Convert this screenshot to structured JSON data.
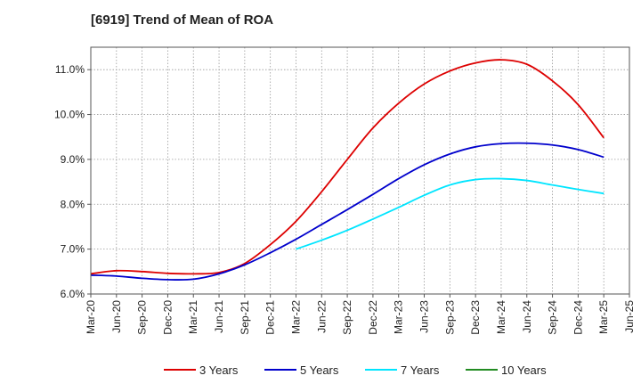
{
  "chart_data": {
    "type": "line",
    "title": "[6919]  Trend of Mean of ROA",
    "xlabel": "",
    "ylabel": "",
    "ylim": [
      6.0,
      11.5
    ],
    "y_ticks": [
      6.0,
      7.0,
      8.0,
      9.0,
      10.0,
      11.0
    ],
    "y_tick_labels": [
      "6.0%",
      "7.0%",
      "8.0%",
      "9.0%",
      "10.0%",
      "11.0%"
    ],
    "x": [
      "Mar-20",
      "Jun-20",
      "Sep-20",
      "Dec-20",
      "Mar-21",
      "Jun-21",
      "Sep-21",
      "Dec-21",
      "Mar-22",
      "Jun-22",
      "Sep-22",
      "Dec-22",
      "Mar-23",
      "Jun-23",
      "Sep-23",
      "Dec-23",
      "Mar-24",
      "Jun-24",
      "Sep-24",
      "Dec-24",
      "Mar-25",
      "Jun-25"
    ],
    "grid": true,
    "legend_position": "bottom",
    "series": [
      {
        "name": "3 Years",
        "color": "#dd0000",
        "values": [
          6.45,
          6.52,
          6.5,
          6.46,
          6.45,
          6.48,
          6.68,
          7.1,
          7.62,
          8.28,
          9.0,
          9.7,
          10.25,
          10.68,
          10.97,
          11.15,
          11.22,
          11.12,
          10.75,
          10.22,
          9.48,
          null
        ]
      },
      {
        "name": "5 Years",
        "color": "#0000cc",
        "values": [
          6.42,
          6.4,
          6.35,
          6.32,
          6.33,
          6.45,
          6.65,
          6.92,
          7.22,
          7.55,
          7.88,
          8.22,
          8.57,
          8.88,
          9.12,
          9.28,
          9.35,
          9.36,
          9.32,
          9.22,
          9.05,
          null
        ]
      },
      {
        "name": "7 Years",
        "color": "#00e5ff",
        "values": [
          null,
          null,
          null,
          null,
          null,
          null,
          null,
          null,
          7.0,
          7.2,
          7.42,
          7.67,
          7.93,
          8.2,
          8.43,
          8.55,
          8.57,
          8.53,
          8.43,
          8.33,
          8.24,
          null
        ]
      },
      {
        "name": "10 Years",
        "color": "#228b22",
        "values": [
          null,
          null,
          null,
          null,
          null,
          null,
          null,
          null,
          null,
          null,
          null,
          null,
          null,
          null,
          null,
          null,
          null,
          null,
          null,
          null,
          null,
          null
        ]
      }
    ]
  }
}
